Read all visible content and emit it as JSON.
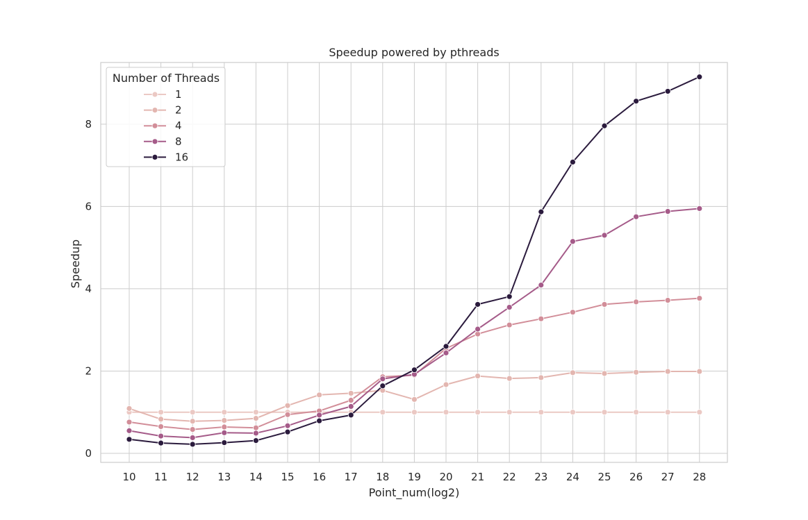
{
  "chart_data": {
    "type": "line",
    "title": "Speedup powered by pthreads",
    "xlabel": "Point_num(log2)",
    "ylabel": "Speedup",
    "x": [
      10,
      11,
      12,
      13,
      14,
      15,
      16,
      17,
      18,
      19,
      20,
      21,
      22,
      23,
      24,
      25,
      26,
      27,
      28
    ],
    "ylim": [
      -0.22,
      9.5
    ],
    "yticks": [
      0,
      2,
      4,
      6,
      8
    ],
    "grid": true,
    "legend": {
      "title": "Number of Threads",
      "placement": "top-left"
    },
    "series": [
      {
        "name": "1",
        "color": "#ebc9c4",
        "values": [
          1.0,
          1.0,
          1.0,
          1.0,
          1.0,
          1.0,
          1.0,
          1.0,
          1.0,
          1.0,
          1.0,
          1.0,
          1.0,
          1.0,
          1.0,
          1.0,
          1.0,
          1.0,
          1.0
        ]
      },
      {
        "name": "2",
        "color": "#e3b6b0",
        "values": [
          1.09,
          0.83,
          0.78,
          0.8,
          0.85,
          1.16,
          1.42,
          1.46,
          1.53,
          1.31,
          1.67,
          1.88,
          1.82,
          1.84,
          1.96,
          1.94,
          1.97,
          1.99,
          1.99
        ]
      },
      {
        "name": "4",
        "color": "#d28e99",
        "values": [
          0.76,
          0.65,
          0.58,
          0.64,
          0.62,
          0.94,
          1.03,
          1.29,
          1.86,
          1.9,
          2.55,
          2.9,
          3.12,
          3.27,
          3.43,
          3.62,
          3.68,
          3.72,
          3.77
        ]
      },
      {
        "name": "8",
        "color": "#a55b89",
        "values": [
          0.55,
          0.42,
          0.38,
          0.5,
          0.49,
          0.67,
          0.93,
          1.14,
          1.81,
          1.92,
          2.44,
          3.02,
          3.55,
          4.09,
          5.15,
          5.3,
          5.75,
          5.88,
          5.95
        ]
      },
      {
        "name": "16",
        "color": "#2b1b3d",
        "values": [
          0.34,
          0.25,
          0.22,
          0.26,
          0.31,
          0.52,
          0.79,
          0.93,
          1.64,
          2.03,
          2.6,
          3.62,
          3.81,
          5.87,
          7.08,
          7.96,
          8.56,
          8.8,
          9.15
        ]
      }
    ]
  }
}
